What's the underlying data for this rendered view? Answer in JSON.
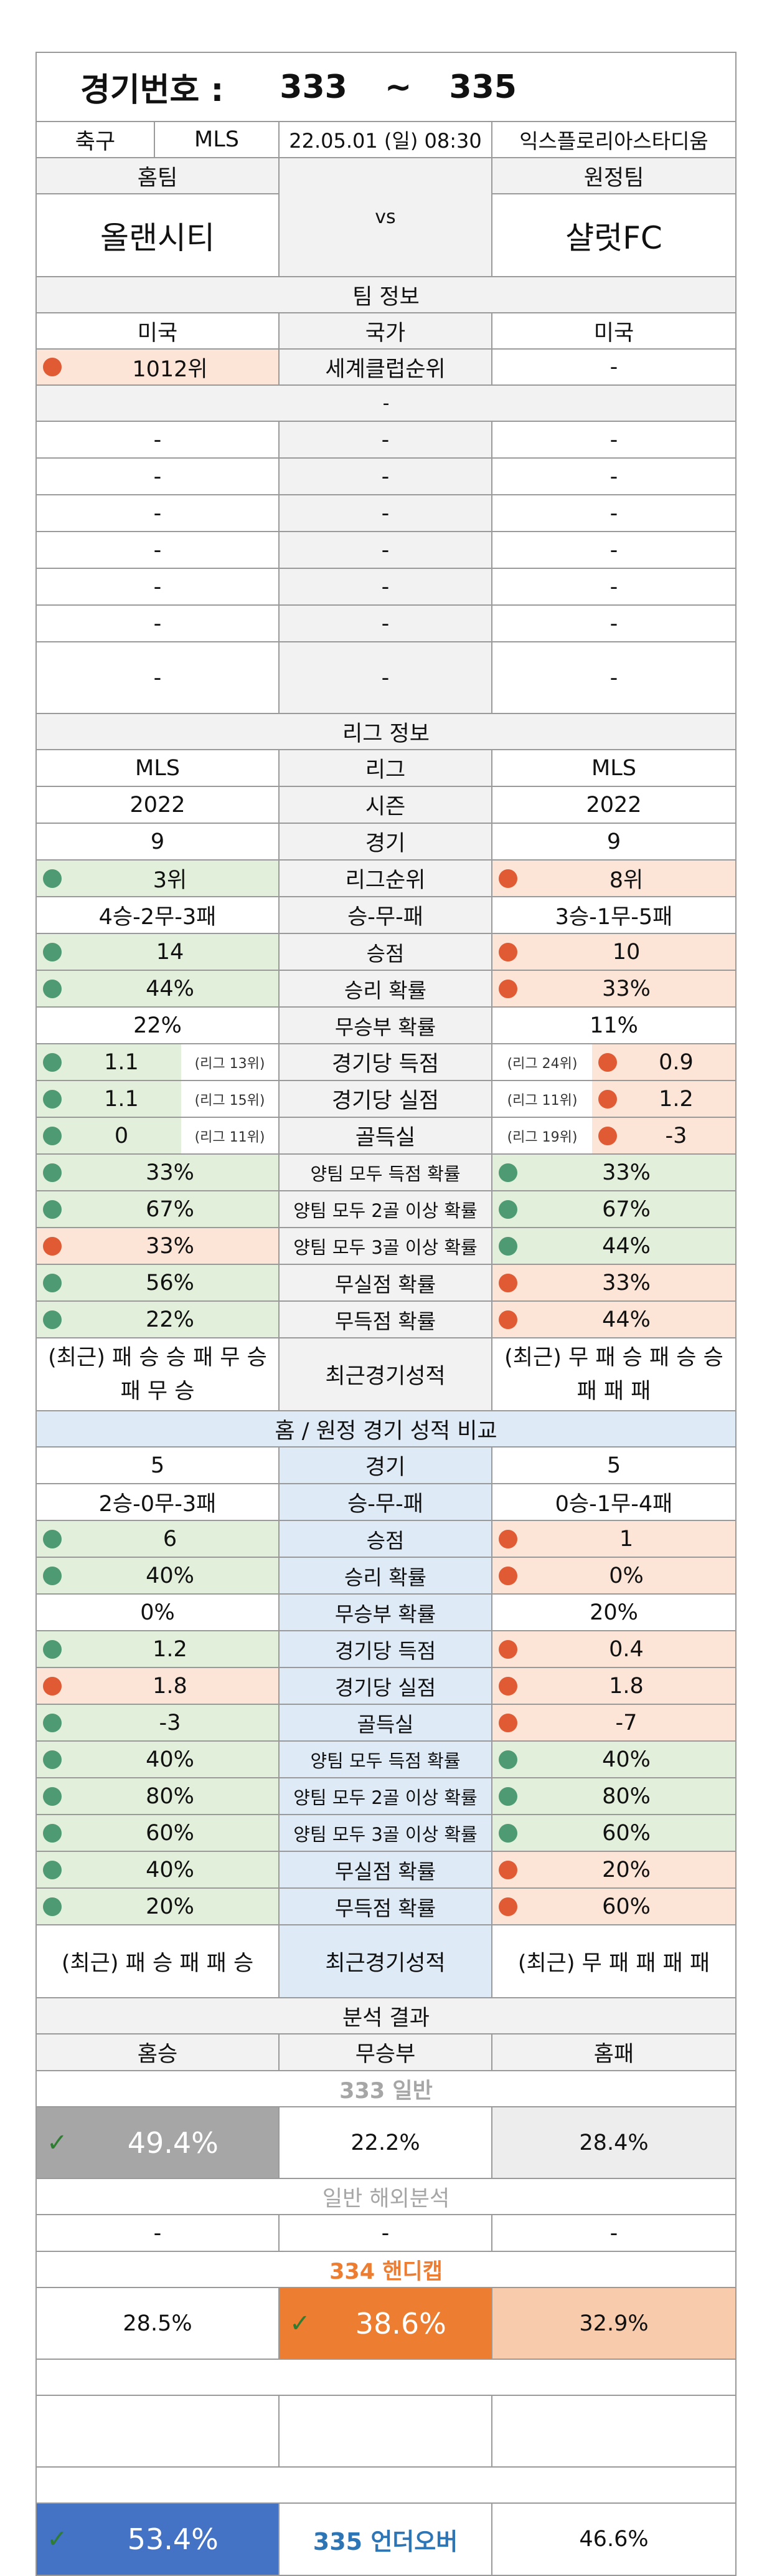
{
  "header": {
    "label": "경기번호 :",
    "from": "333",
    "tilde": "~",
    "to": "335"
  },
  "match": {
    "sport": "축구",
    "league": "MLS",
    "datetime": "22.05.01 (일) 08:30",
    "venue": "익스플로리아스타디움"
  },
  "teams": {
    "home_label": "홈팀",
    "away_label": "원정팀",
    "home": "올랜시티",
    "vs": "vs",
    "away": "샬럿FC"
  },
  "team_info": {
    "title": "팀 정보",
    "country_home": "미국",
    "country_label": "국가",
    "country_away": "미국",
    "rank_home": "1012위",
    "rank_label": "세계클럽순위",
    "rank_away": "-",
    "dash": "-"
  },
  "league_info": {
    "title": "리그 정보",
    "rows": [
      {
        "label": "리그",
        "home": "MLS",
        "away": "MLS"
      },
      {
        "label": "시즌",
        "home": "2022",
        "away": "2022"
      },
      {
        "label": "경기",
        "home": "9",
        "away": "9"
      }
    ]
  },
  "standings": {
    "label": "리그순위",
    "home": "3위",
    "away": "8위"
  },
  "wdl": {
    "label": "승-무-패",
    "home": "4승-2무-3패",
    "away": "3승-1무-5패"
  },
  "stats": [
    {
      "label": "승점",
      "home": "14",
      "away": "10",
      "hc": "g",
      "ac": "r"
    },
    {
      "label": "승리 확률",
      "home": "44%",
      "away": "33%",
      "hc": "g",
      "ac": "r"
    },
    {
      "label": "무승부 확률",
      "home": "22%",
      "away": "11%",
      "hc": "",
      "ac": ""
    }
  ],
  "goal_stats": [
    {
      "label": "경기당 득점",
      "home": "1.1",
      "home_rank": "(리그 13위)",
      "away": "0.9",
      "away_rank": "(리그 24위)",
      "hc": "g",
      "ac": "r"
    },
    {
      "label": "경기당 실점",
      "home": "1.1",
      "home_rank": "(리그 15위)",
      "away": "1.2",
      "away_rank": "(리그 11위)",
      "hc": "g",
      "ac": "r"
    },
    {
      "label": "골득실",
      "home": "0",
      "home_rank": "(리그 11위)",
      "away": "-3",
      "away_rank": "(리그 19위)",
      "hc": "g",
      "ac": "r"
    }
  ],
  "prob_stats": [
    {
      "label": "양팀 모두 득점 확률",
      "home": "33%",
      "away": "33%",
      "hc": "g",
      "ac": "g"
    },
    {
      "label": "양팀 모두 2골 이상 확률",
      "home": "67%",
      "away": "67%",
      "hc": "g",
      "ac": "g"
    },
    {
      "label": "양팀 모두 3골 이상 확률",
      "home": "33%",
      "away": "44%",
      "hc": "r",
      "ac": "g"
    },
    {
      "label": "무실점 확률",
      "home": "56%",
      "away": "33%",
      "hc": "g",
      "ac": "r"
    },
    {
      "label": "무득점 확률",
      "home": "22%",
      "away": "44%",
      "hc": "g",
      "ac": "r"
    }
  ],
  "recent": {
    "label": "최근경기성적",
    "home": "(최근) 패 승 승 패 무 승 패 무 승",
    "away": "(최근) 무 패 승 패 승 승 패 패 패"
  },
  "compare": {
    "title": "홈 / 원정 경기 성적 비교",
    "games": {
      "label": "경기",
      "home": "5",
      "away": "5"
    },
    "wdl": {
      "label": "승-무-패",
      "home": "2승-0무-3패",
      "away": "0승-1무-4패"
    },
    "stats": [
      {
        "label": "승점",
        "home": "6",
        "away": "1",
        "hc": "g",
        "ac": "r"
      },
      {
        "label": "승리 확률",
        "home": "40%",
        "away": "0%",
        "hc": "g",
        "ac": "r"
      },
      {
        "label": "무승부 확률",
        "home": "0%",
        "away": "20%",
        "hc": "",
        "ac": ""
      },
      {
        "label": "경기당 득점",
        "home": "1.2",
        "away": "0.4",
        "hc": "g",
        "ac": "r"
      },
      {
        "label": "경기당 실점",
        "home": "1.8",
        "away": "1.8",
        "hc": "r",
        "ac": "r"
      },
      {
        "label": "골득실",
        "home": "-3",
        "away": "-7",
        "hc": "g",
        "ac": "r"
      },
      {
        "label": "양팀 모두 득점 확률",
        "home": "40%",
        "away": "40%",
        "hc": "g",
        "ac": "g"
      },
      {
        "label": "양팀 모두 2골 이상 확률",
        "home": "80%",
        "away": "80%",
        "hc": "g",
        "ac": "g"
      },
      {
        "label": "양팀 모두 3골 이상 확률",
        "home": "60%",
        "away": "60%",
        "hc": "g",
        "ac": "g"
      },
      {
        "label": "무실점 확률",
        "home": "40%",
        "away": "20%",
        "hc": "g",
        "ac": "r"
      },
      {
        "label": "무득점 확률",
        "home": "20%",
        "away": "60%",
        "hc": "g",
        "ac": "r"
      }
    ],
    "recent": {
      "label": "최근경기성적",
      "home": "(최근) 패 승 패 패 승",
      "away": "(최근) 무 패 패 패 패"
    }
  },
  "analysis": {
    "title": "분석 결과",
    "home": "홈승",
    "draw": "무승부",
    "away": "홈패",
    "general_title": "333 일반",
    "general": [
      "49.4%",
      "22.2%",
      "28.4%"
    ],
    "overseas_title": "일반 해외분석",
    "overseas": [
      "-",
      "-",
      "-"
    ],
    "handicap_title": "334 핸디캡",
    "handicap": [
      "28.5%",
      "38.6%",
      "32.9%"
    ],
    "underover_title": "335 언더오버",
    "underover": [
      "53.4%",
      "46.6%"
    ]
  },
  "colors": {
    "green_bg": "#e2efda",
    "red_bg": "#fce4d6",
    "green_dot": "#4e9a72",
    "red_dot": "#e05a34",
    "orange": "#ed7d31",
    "blue": "#4472c4",
    "gray": "#a6a6a6"
  }
}
